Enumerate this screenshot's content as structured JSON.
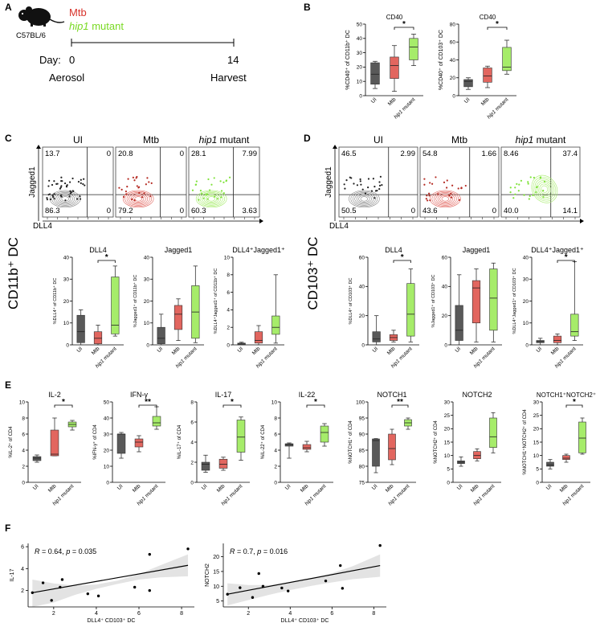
{
  "figure": {
    "labels": {
      "A": "A",
      "B": "B",
      "C": "C",
      "D": "D",
      "E": "E",
      "F": "F"
    },
    "colors": {
      "ui": "#595959",
      "mtb": "#e2665f",
      "mutant": "#a6ec6a",
      "mtb_text": "#d7332b",
      "mutant_text": "#79d923",
      "ui_dot": "#222222",
      "mtb_dot": "#b52a22",
      "mutant_dot": "#7fe23a",
      "band": "#e3e3e3"
    }
  },
  "panel_a": {
    "strain": "C57BL/6",
    "mtb_label": "Mtb",
    "mutant_italic": "hip1",
    "mutant_suffix": " mutant",
    "day_label": "Day:",
    "day_start": "0",
    "day_end": "14",
    "start_event": "Aerosol",
    "end_event": "Harvest"
  },
  "flow_c": {
    "row_label": "CD11b⁺ DC",
    "y_axis": "Jagged1",
    "x_axis": "DLL4",
    "plots": [
      {
        "group": "UI",
        "italic": "",
        "quadrants": {
          "ul": "13.7",
          "ur": "0",
          "ll": "86.3",
          "lr": "0"
        }
      },
      {
        "group": "Mtb",
        "italic": "",
        "quadrants": {
          "ul": "20.8",
          "ur": "0",
          "ll": "79.2",
          "lr": "0"
        }
      },
      {
        "group": " mutant",
        "italic": "hip1",
        "quadrants": {
          "ul": "28.1",
          "ur": "7.99",
          "ll": "60.3",
          "lr": "3.63"
        }
      }
    ]
  },
  "flow_d": {
    "row_label": "CD103⁺ DC",
    "y_axis": "Jagged1",
    "x_axis": "DLL4",
    "plots": [
      {
        "group": "UI",
        "italic": "",
        "quadrants": {
          "ul": "46.5",
          "ur": "2.99",
          "ll": "50.5",
          "lr": "0"
        }
      },
      {
        "group": "Mtb",
        "italic": "",
        "quadrants": {
          "ul": "54.8",
          "ur": "1.66",
          "ll": "43.6",
          "lr": "0"
        }
      },
      {
        "group": " mutant",
        "italic": "hip1",
        "quadrants": {
          "ul": "8.46",
          "ur": "37.4",
          "ll": "40.0",
          "lr": "14.1"
        }
      }
    ]
  },
  "chart_data": [
    {
      "id": "B1",
      "type": "box",
      "title": "CD40",
      "ylabel": "%CD40⁺ of CD11b⁺ DC",
      "ylim": [
        0,
        50
      ],
      "yticks": [
        0,
        10,
        20,
        30,
        40,
        50
      ],
      "categories": [
        "UI",
        "Mtb",
        "hip1 mutant"
      ],
      "boxes": [
        [
          5,
          8,
          15,
          23,
          24
        ],
        [
          3,
          12,
          21,
          27,
          35
        ],
        [
          21,
          25,
          34,
          40,
          43
        ]
      ],
      "annotations": [
        {
          "from": 1,
          "to": 2,
          "text": "*"
        }
      ]
    },
    {
      "id": "B2",
      "type": "box",
      "title": "CD40",
      "ylabel": "%CD40⁺ of CD103⁺ DC",
      "ylim": [
        0,
        80
      ],
      "yticks": [
        0,
        20,
        40,
        60,
        80
      ],
      "categories": [
        "UI",
        "Mtb",
        "hip1 mutant"
      ],
      "boxes": [
        [
          7,
          10,
          16,
          18,
          20
        ],
        [
          9,
          15,
          22,
          31,
          33
        ],
        [
          24,
          28,
          32,
          54,
          62
        ]
      ],
      "annotations": [
        {
          "from": 1,
          "to": 2,
          "text": "*"
        }
      ]
    },
    {
      "id": "C1",
      "type": "box",
      "title": "DLL4",
      "ylabel": "%DLL4⁺ of CD11b⁺ DC",
      "ylim": [
        0,
        40
      ],
      "yticks": [
        0,
        10,
        20,
        30,
        40
      ],
      "categories": [
        "UI",
        "Mtb",
        "hip1 mutant"
      ],
      "boxes": [
        [
          0,
          1,
          6,
          13.5,
          16
        ],
        [
          0,
          0.5,
          3,
          6,
          9
        ],
        [
          4,
          5,
          9,
          31,
          36
        ]
      ],
      "annotations": [
        {
          "from": 1,
          "to": 2,
          "text": "*"
        }
      ]
    },
    {
      "id": "C2",
      "type": "box",
      "title": "Jagged1",
      "ylabel": "%Jagged1⁺ of CD11b⁺ DC",
      "ylim": [
        0,
        40
      ],
      "yticks": [
        0,
        10,
        20,
        30,
        40
      ],
      "categories": [
        "UI",
        "Mtb",
        "hip1 mutant"
      ],
      "boxes": [
        [
          0,
          0.5,
          3,
          8,
          14
        ],
        [
          2,
          7,
          14,
          18,
          21
        ],
        [
          1,
          3,
          15,
          27,
          36
        ]
      ],
      "annotations": []
    },
    {
      "id": "C3",
      "type": "box",
      "title": "DLL4⁺Jagged1⁺",
      "ylabel": "%DLL4⁺Jagged1⁺ of CD11b⁺ DC",
      "ylim": [
        0,
        10
      ],
      "yticks": [
        0,
        2,
        4,
        6,
        8,
        10
      ],
      "categories": [
        "UI",
        "Mtb",
        "hip1 mutant"
      ],
      "boxes": [
        [
          0,
          0,
          0.1,
          0.2,
          0.3
        ],
        [
          0,
          0.2,
          0.5,
          1.5,
          2.2
        ],
        [
          0.2,
          1.2,
          2,
          3.3,
          8
        ]
      ],
      "annotations": []
    },
    {
      "id": "D1",
      "type": "box",
      "title": "DLL4",
      "ylabel": "%DLL4⁺ of CD103⁺ DC",
      "ylim": [
        0,
        60
      ],
      "yticks": [
        0,
        20,
        40,
        60
      ],
      "categories": [
        "UI",
        "Mtb",
        "hip1 mutant"
      ],
      "boxes": [
        [
          0,
          2,
          4,
          9,
          20
        ],
        [
          2,
          3,
          5,
          7,
          10
        ],
        [
          2,
          6,
          21,
          42,
          52
        ]
      ],
      "annotations": [
        {
          "from": 1,
          "to": 2,
          "text": "*"
        }
      ]
    },
    {
      "id": "D2",
      "type": "box",
      "title": "Jagged1",
      "ylabel": "%Jagged1⁺ of CD103⁺ DC",
      "ylim": [
        0,
        60
      ],
      "yticks": [
        0,
        20,
        40,
        60
      ],
      "categories": [
        "UI",
        "Mtb",
        "hip1 mutant"
      ],
      "boxes": [
        [
          0,
          3,
          10,
          27,
          48
        ],
        [
          2,
          15,
          39,
          44,
          52
        ],
        [
          2,
          10,
          32,
          52,
          56
        ]
      ],
      "annotations": []
    },
    {
      "id": "D3",
      "type": "box",
      "title": "DLL4⁺Jagged1⁺",
      "ylabel": "%DLL4⁺Jagged1⁺ of CD103⁺ DC",
      "ylim": [
        0,
        40
      ],
      "yticks": [
        0,
        10,
        20,
        30,
        40
      ],
      "categories": [
        "UI",
        "Mtb",
        "hip1 mutant"
      ],
      "boxes": [
        [
          0,
          1,
          1.5,
          2,
          3
        ],
        [
          0,
          1,
          2,
          4,
          5
        ],
        [
          2,
          4,
          6,
          14,
          38
        ]
      ],
      "annotations": [
        {
          "from": 1,
          "to": 2,
          "text": "*"
        }
      ]
    },
    {
      "id": "E1",
      "type": "box",
      "title": "IL-2",
      "ylabel": "%IL-2⁺ of CD4",
      "ylim": [
        0,
        10
      ],
      "yticks": [
        0,
        2,
        4,
        6,
        8,
        10
      ],
      "categories": [
        "UI",
        "Mtb",
        "hip1 mutant"
      ],
      "boxes": [
        [
          2.5,
          2.7,
          3,
          3.2,
          3.4
        ],
        [
          3.3,
          3.3,
          3.5,
          6.5,
          8
        ],
        [
          6.5,
          6.9,
          7.2,
          7.5,
          7.7
        ]
      ],
      "annotations": [
        {
          "from": 1,
          "to": 2,
          "text": "*"
        }
      ]
    },
    {
      "id": "E2",
      "type": "box",
      "title": "IFN-γ",
      "ylabel": "%IFN-γ⁺ of CD4",
      "ylim": [
        0,
        50
      ],
      "yticks": [
        0,
        10,
        20,
        30,
        40,
        50
      ],
      "categories": [
        "UI",
        "Mtb",
        "hip1 mutant"
      ],
      "boxes": [
        [
          15,
          18,
          30,
          30,
          31
        ],
        [
          19,
          22,
          25,
          27,
          29
        ],
        [
          33,
          35,
          37,
          41,
          47
        ]
      ],
      "annotations": [
        {
          "from": 1,
          "to": 2,
          "text": "**"
        }
      ]
    },
    {
      "id": "E3",
      "type": "box",
      "title": "IL-17",
      "ylabel": "%IL-17⁺ of CD4",
      "ylim": [
        0,
        8
      ],
      "yticks": [
        0,
        2,
        4,
        6,
        8
      ],
      "categories": [
        "UI",
        "Mtb",
        "hip1 mutant"
      ],
      "boxes": [
        [
          1,
          1.2,
          1.8,
          2,
          2.7
        ],
        [
          1.2,
          1.4,
          1.8,
          2.3,
          2.5
        ],
        [
          2.2,
          3,
          4.5,
          6.2,
          6.5
        ]
      ],
      "annotations": [
        {
          "from": 1,
          "to": 2,
          "text": "*"
        }
      ]
    },
    {
      "id": "E4",
      "type": "box",
      "title": "IL-22",
      "ylabel": "%IL-22⁺ of CD4",
      "ylim": [
        0,
        10
      ],
      "yticks": [
        0,
        2,
        4,
        6,
        8,
        10
      ],
      "categories": [
        "UI",
        "Mtb",
        "hip1 mutant"
      ],
      "boxes": [
        [
          3,
          4.5,
          4.7,
          4.8,
          4.9
        ],
        [
          3.8,
          4.1,
          4.3,
          4.7,
          5.1
        ],
        [
          4.5,
          5,
          6.2,
          7,
          7.3
        ]
      ],
      "annotations": [
        {
          "from": 1,
          "to": 2,
          "text": "*"
        }
      ]
    },
    {
      "id": "E5",
      "type": "box",
      "title": "NOTCH1",
      "ylabel": "%NOTCH1⁺ of CD4",
      "ylim": [
        75,
        100
      ],
      "yticks": [
        75,
        80,
        85,
        90,
        95,
        100
      ],
      "categories": [
        "UI",
        "Mtb",
        "hip1 mutant"
      ],
      "boxes": [
        [
          78,
          80,
          88,
          88.5,
          88.6
        ],
        [
          80.5,
          82,
          85.5,
          90,
          91.5
        ],
        [
          91.5,
          92.5,
          93.5,
          94.5,
          95
        ]
      ],
      "annotations": [
        {
          "from": 1,
          "to": 2,
          "text": "**"
        }
      ]
    },
    {
      "id": "E6",
      "type": "box",
      "title": "NOTCH2",
      "ylabel": "%NOTCH2⁺ of CD4",
      "ylim": [
        0,
        30
      ],
      "yticks": [
        0,
        5,
        10,
        15,
        20,
        25,
        30
      ],
      "categories": [
        "UI",
        "Mtb",
        "hip1 mutant"
      ],
      "boxes": [
        [
          6,
          7,
          7.5,
          8,
          9.5
        ],
        [
          8,
          8.8,
          10,
          11.5,
          12.5
        ],
        [
          11,
          13,
          17,
          24,
          26
        ]
      ],
      "annotations": []
    },
    {
      "id": "E7",
      "type": "box",
      "title": "NOTCH1⁺NOTCH2⁺",
      "ylabel": "%NOTCH1⁺NOTCH2⁺ of CD4",
      "ylim": [
        0,
        30
      ],
      "yticks": [
        0,
        5,
        10,
        15,
        20,
        25,
        30
      ],
      "categories": [
        "UI",
        "Mtb",
        "hip1 mutant"
      ],
      "boxes": [
        [
          5,
          6,
          6.5,
          7.5,
          8.5
        ],
        [
          7.5,
          8.5,
          9,
          10,
          10.5
        ],
        [
          10.5,
          11,
          16.5,
          22.5,
          24
        ]
      ],
      "annotations": [
        {
          "from": 1,
          "to": 2,
          "text": "*"
        }
      ]
    },
    {
      "id": "F1",
      "type": "scatter",
      "stat_r": "0.64",
      "stat_p": "0.035",
      "ylabel": "IL-17",
      "xlabel": "DLL4⁺ CD103⁺ DC",
      "xlim": [
        0.8,
        8.6
      ],
      "ylim": [
        0.5,
        6.3
      ],
      "xticks": [
        2,
        4,
        6,
        8
      ],
      "yticks": [
        2,
        4,
        6
      ],
      "points": [
        [
          1,
          1.8
        ],
        [
          1.5,
          2.7
        ],
        [
          1.9,
          1.1
        ],
        [
          2.3,
          2.3
        ],
        [
          2.4,
          3
        ],
        [
          3.6,
          1.7
        ],
        [
          4.1,
          1.5
        ],
        [
          5.8,
          2.3
        ],
        [
          6.5,
          5.3
        ],
        [
          6.5,
          2
        ],
        [
          8.3,
          5.8
        ]
      ],
      "fit": {
        "x0": 1,
        "y0": 1.8,
        "x1": 8.3,
        "y1": 4.3
      },
      "band_upper": [
        [
          1,
          3
        ],
        [
          2,
          2.65
        ],
        [
          3,
          2.45
        ],
        [
          4,
          2.55
        ],
        [
          5,
          2.9
        ],
        [
          6,
          3.5
        ],
        [
          7,
          4.3
        ],
        [
          8.3,
          5.3
        ]
      ],
      "band_lower": [
        [
          8.3,
          3.3
        ],
        [
          7,
          3.2
        ],
        [
          6,
          3
        ],
        [
          5,
          2.6
        ],
        [
          4,
          2.15
        ],
        [
          3,
          1.6
        ],
        [
          2,
          0.9
        ],
        [
          1,
          0.5
        ]
      ]
    },
    {
      "id": "F2",
      "type": "scatter",
      "stat_r": "0.7",
      "stat_p": "0.016",
      "ylabel": "NOTCH2",
      "xlabel": "DLL4⁺ CD103⁺ DC",
      "xlim": [
        0.8,
        8.6
      ],
      "ylim": [
        3,
        24.5
      ],
      "xticks": [
        2,
        4,
        6,
        8
      ],
      "yticks": [
        5,
        10,
        15,
        20
      ],
      "points": [
        [
          1,
          7.3
        ],
        [
          1.6,
          9.5
        ],
        [
          2.2,
          6.2
        ],
        [
          2.5,
          14.3
        ],
        [
          2.7,
          10
        ],
        [
          3.6,
          9.4
        ],
        [
          3.9,
          8.4
        ],
        [
          5.7,
          11.8
        ],
        [
          6.4,
          17
        ],
        [
          6.5,
          9.3
        ],
        [
          8.3,
          23.8
        ]
      ],
      "fit": {
        "x0": 1,
        "y0": 7.3,
        "x1": 8.3,
        "y1": 17
      },
      "band_upper": [
        [
          1,
          11
        ],
        [
          2,
          10.4
        ],
        [
          3,
          10.4
        ],
        [
          4,
          11.2
        ],
        [
          5,
          12.6
        ],
        [
          6,
          14.4
        ],
        [
          7,
          16.8
        ],
        [
          8.3,
          20.8
        ]
      ],
      "band_lower": [
        [
          8.3,
          13.2
        ],
        [
          7,
          12.4
        ],
        [
          6,
          11.3
        ],
        [
          5,
          10.1
        ],
        [
          4,
          8.7
        ],
        [
          3,
          7.1
        ],
        [
          2,
          5.3
        ],
        [
          1,
          3.5
        ]
      ]
    }
  ]
}
